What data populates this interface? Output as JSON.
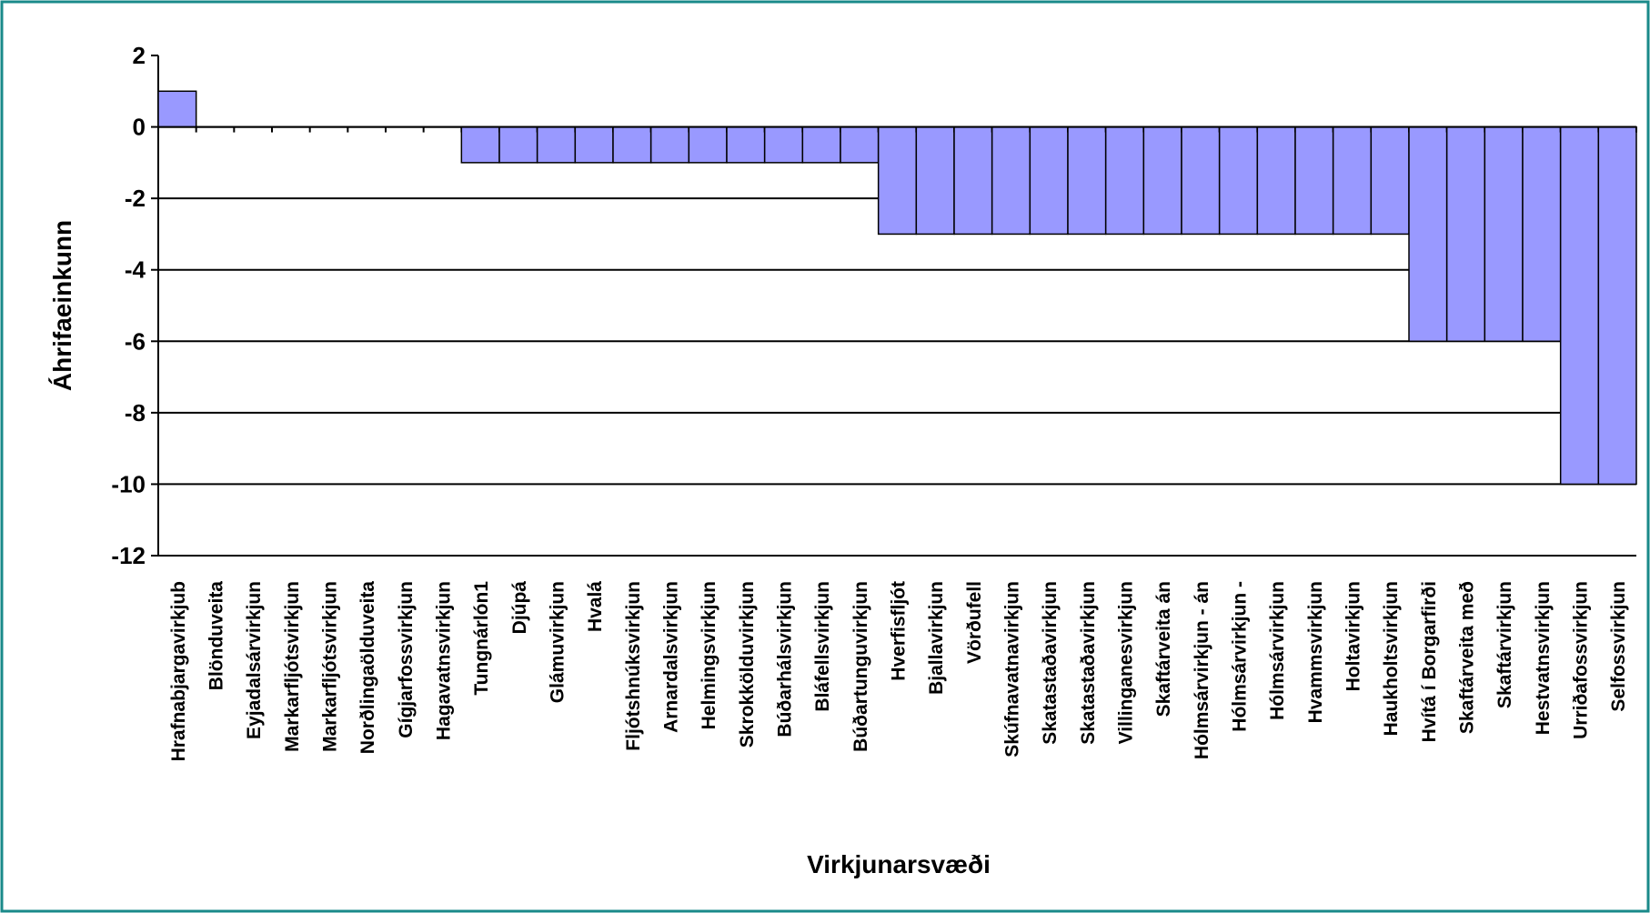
{
  "chart_data": {
    "type": "bar",
    "x_label": "Virkjunarsvæði",
    "y_label": "Áhrifaeinkunn",
    "categories": [
      "Hrafnabjargavirkjub",
      "Blönduveita",
      "Eyjadalsárvirkjun",
      "Markarfljótsvirkjun",
      "Markarfljótsvirkjun",
      "Norðlingaölduveita",
      "Gígjarfossvirkjun",
      "Hagavatnsvirkjun",
      "Tungnárlón1",
      "Djúpá",
      "Glámuvirkjun",
      "Hvalá",
      "Fljótshnúksvirkjun",
      "Arnardalsvirkjun",
      "Helmingsvirkjun",
      "Skrokkölduvirkjun",
      "Búðarhálsvirkjun",
      "Bláfellsvirkjun",
      "Búðartunguvirkjun",
      "Hverfisfljót",
      "Bjallavirkjun",
      "Vörðufell",
      "Skúfnavatnavirkjun",
      "Skatastaðavirkjun",
      "Skatastaðavirkjun",
      "Villinganesvirkjun",
      "Skaftárveita án",
      "Hólmsárvirkjun - án",
      "Hólmsárvirkjun -",
      "Hólmsárvirkjun",
      "Hvammsvirkjun",
      "Holtavirkjun",
      "Haukholtsvirkjun",
      "Hvítá í Borgarfirði",
      "Skaftárveita með",
      "Skaftárvirkjun",
      "Hestvatnsvirkjun",
      "Urriðafossvirkjun",
      "Selfossvirkjun"
    ],
    "values": [
      1,
      0,
      0,
      0,
      0,
      0,
      0,
      0,
      -1,
      -1,
      -1,
      -1,
      -1,
      -1,
      -1,
      -1,
      -1,
      -1,
      -1,
      -3,
      -3,
      -3,
      -3,
      -3,
      -3,
      -3,
      -3,
      -3,
      -3,
      -3,
      -3,
      -3,
      -3,
      -6,
      -6,
      -6,
      -6,
      -10,
      -10
    ],
    "color": "#9999ff",
    "ylim": [
      -12,
      2
    ],
    "yticks": [
      2,
      0,
      -2,
      -4,
      -6,
      -8,
      -10,
      -12
    ],
    "grid": true
  }
}
